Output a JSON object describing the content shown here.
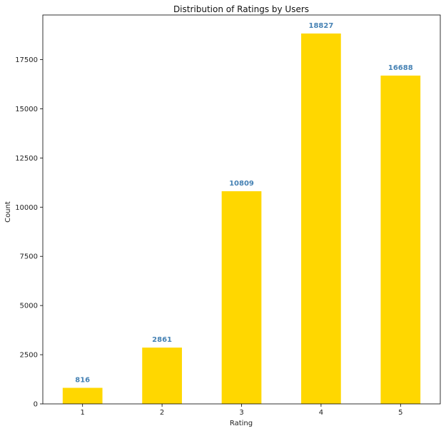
{
  "chart_data": {
    "type": "bar",
    "title": "Distribution of Ratings by Users",
    "xlabel": "Rating",
    "ylabel": "Count",
    "categories": [
      "1",
      "2",
      "3",
      "4",
      "5"
    ],
    "values": [
      816,
      2861,
      10809,
      18827,
      16688
    ],
    "data_labels": [
      "816",
      "2861",
      "10809",
      "18827",
      "16688"
    ],
    "ylim": [
      0,
      19768
    ],
    "yticks": [
      0,
      2500,
      5000,
      7500,
      10000,
      12500,
      15000,
      17500
    ],
    "ytick_labels": [
      "0",
      "2500",
      "5000",
      "7500",
      "10000",
      "12500",
      "15000",
      "17500"
    ],
    "grid": false,
    "legend": "none",
    "colors": {
      "bar": "#ffd700",
      "data_label": "#4682b4",
      "axis": "#000000"
    }
  }
}
